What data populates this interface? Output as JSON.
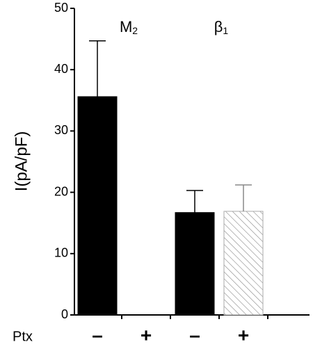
{
  "chart_data": {
    "type": "bar",
    "y_label": "I(pA/pF)",
    "x_label": "Ptx",
    "categories": [
      "–",
      "+",
      "–",
      "+"
    ],
    "values": [
      35.6,
      0,
      16.7,
      16.9
    ],
    "errors": [
      9.1,
      null,
      3.6,
      4.3
    ],
    "bar_styles": [
      "solid",
      "solid",
      "solid",
      "hatched"
    ],
    "color": "#000000",
    "groups": [
      {
        "label": "M",
        "sub": "2"
      },
      {
        "label": "β",
        "sub": "1"
      }
    ],
    "ylim": [
      0,
      50
    ],
    "yticks": [
      0,
      10,
      20,
      30,
      40,
      50
    ]
  }
}
